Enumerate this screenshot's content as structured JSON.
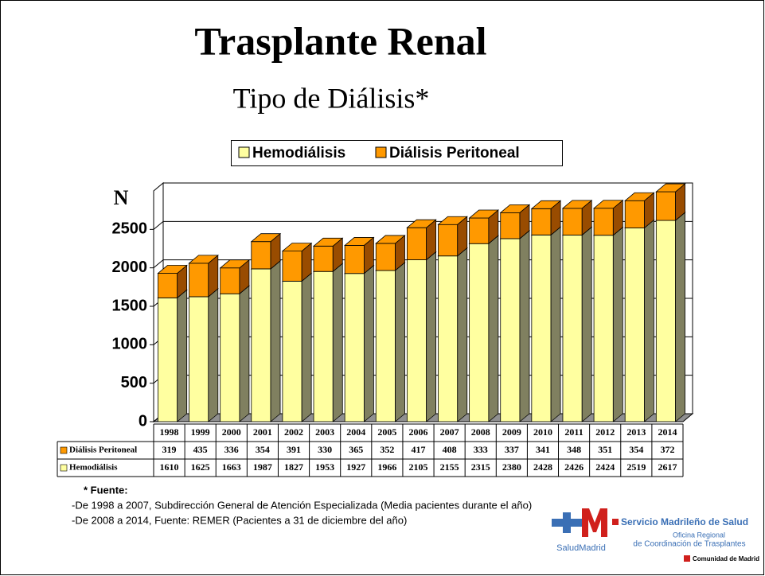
{
  "chart_data": {
    "type": "bar3d_stacked",
    "title": "Trasplante Renal",
    "subtitle": "Tipo de Diálisis*",
    "y_label": "N",
    "categories": [
      "1998",
      "1999",
      "2000",
      "2001",
      "2002",
      "2003",
      "2004",
      "2005",
      "2006",
      "2007",
      "2008",
      "2009",
      "2010",
      "2011",
      "2012",
      "2013",
      "2014"
    ],
    "series": [
      {
        "name": "Hemodiálisis",
        "color": "#ffffa0",
        "side_color": "#808060",
        "values": [
          1610,
          1625,
          1663,
          1987,
          1827,
          1953,
          1927,
          1966,
          2105,
          2155,
          2315,
          2380,
          2428,
          2426,
          2424,
          2519,
          2617
        ]
      },
      {
        "name": "Diálisis Peritoneal",
        "color": "#ff9900",
        "side_color": "#994c00",
        "values": [
          319,
          435,
          336,
          354,
          391,
          330,
          365,
          352,
          417,
          408,
          333,
          337,
          341,
          348,
          351,
          354,
          372
        ]
      }
    ],
    "ylim": [
      0,
      3000
    ],
    "yticks": [
      0,
      500,
      1000,
      1500,
      2000,
      2500
    ],
    "grid": true,
    "legend": "top"
  },
  "footnote": {
    "heading": "* Fuente:",
    "lines": [
      "-De 1998 a 2007, Subdirección General de Atención Especializada (Media pacientes durante el año)",
      "-De 2008 a 2014, Fuente: REMER (Pacientes a 31 de diciembre del año)"
    ]
  },
  "logo": {
    "brand": "SaludMadrid",
    "service": "Servicio Madrileño de Salud",
    "office_1": "Oficina Regional",
    "office_2": "de Coordinación de Trasplantes",
    "region": "Comunidad de Madrid"
  }
}
